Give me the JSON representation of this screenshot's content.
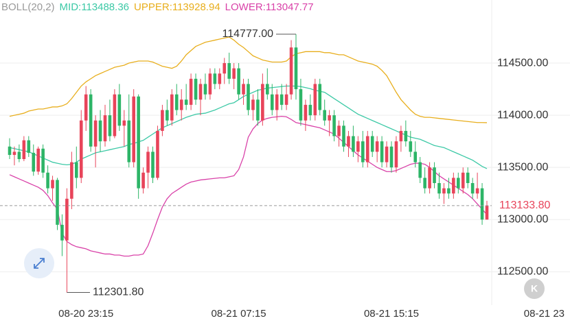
{
  "chart_data": {
    "type": "candlestick",
    "indicator": "BOLL(20,2)",
    "categories": [
      null,
      null,
      null,
      null,
      null,
      null,
      null,
      null,
      null,
      null,
      null,
      null,
      null,
      null,
      null,
      null,
      "08-20 23:15",
      null,
      null,
      null,
      null,
      null,
      null,
      null,
      null,
      null,
      null,
      null,
      null,
      null,
      null,
      null,
      null,
      null,
      null,
      null,
      null,
      null,
      null,
      null,
      null,
      null,
      null,
      null,
      null,
      null,
      null,
      null,
      "08-21 07:15",
      null,
      null,
      null,
      null,
      null,
      null,
      null,
      null,
      null,
      null,
      null,
      null,
      null,
      null,
      null,
      null,
      null,
      null,
      null,
      null,
      null,
      null,
      null,
      null,
      null,
      null,
      null,
      null,
      null,
      null,
      null,
      "08-21 15:15",
      null,
      null,
      null,
      null,
      null,
      null,
      null,
      null,
      null,
      null,
      null,
      null,
      null,
      null,
      null,
      null,
      null,
      null,
      null,
      null,
      null,
      null,
      null,
      null,
      null,
      null,
      null,
      null,
      null,
      null,
      null,
      "08-21 23"
    ],
    "open": [
      113700,
      113620,
      113650,
      113580,
      113760,
      113640,
      113460,
      113680,
      113450,
      113300,
      113380,
      112950,
      112800,
      113200,
      113550,
      113400,
      113950,
      114200,
      113700,
      113950,
      113750,
      114000,
      113800,
      114200,
      113900,
      113950,
      113550,
      114180,
      113300,
      113450,
      113650,
      113400,
      113850,
      114050,
      113950,
      114200,
      114050,
      114150,
      114100,
      114350,
      114150,
      114300,
      114200,
      114400,
      114300,
      114400,
      114500,
      114350,
      114450,
      114200,
      114300,
      114050,
      114150,
      113950,
      114300,
      114200,
      114050,
      114200,
      114100,
      114200,
      114650,
      114250,
      113950,
      114100,
      114000,
      114300,
      114050,
      113950,
      114000,
      113800,
      113900,
      113700,
      113800,
      113650,
      113750,
      113550,
      113800,
      113650,
      113750,
      113550,
      113700,
      113500,
      113750,
      113850,
      113750,
      113650,
      113550,
      113400,
      113300,
      113500,
      113350,
      113250,
      113300,
      113250,
      113400,
      113300,
      113450,
      113350,
      113250,
      113300,
      113000,
      null,
      null,
      null,
      null,
      null,
      null,
      null,
      null,
      null,
      null,
      null,
      null
    ],
    "high": [
      113780,
      113700,
      113720,
      113800,
      113800,
      113720,
      113700,
      113720,
      113520,
      113420,
      113400,
      113050,
      113300,
      113650,
      113700,
      114050,
      114280,
      114250,
      114000,
      114050,
      114100,
      114150,
      114250,
      114300,
      114050,
      114200,
      114250,
      114200,
      113500,
      113700,
      113700,
      113900,
      114100,
      114150,
      114250,
      114300,
      114250,
      114300,
      114400,
      114400,
      114350,
      114400,
      114450,
      114450,
      114450,
      114550,
      114600,
      114500,
      114500,
      114350,
      114350,
      114200,
      114250,
      114400,
      114450,
      114300,
      114250,
      114300,
      114300,
      114720,
      114777,
      114350,
      114150,
      114200,
      114350,
      114350,
      114150,
      114050,
      114050,
      113950,
      113950,
      113850,
      113900,
      113800,
      113850,
      113850,
      113850,
      113800,
      113800,
      113750,
      113750,
      113800,
      113900,
      113950,
      113850,
      113750,
      113600,
      113500,
      113550,
      113550,
      113450,
      113350,
      113400,
      113450,
      113450,
      113500,
      113500,
      113400,
      113450,
      113350,
      113180,
      null,
      null,
      null,
      null,
      null,
      null,
      null,
      null,
      null,
      null,
      null,
      null
    ],
    "low": [
      113580,
      113520,
      113550,
      113560,
      113600,
      113420,
      113430,
      113400,
      113250,
      113180,
      112900,
      112650,
      112301.8,
      113100,
      113300,
      113350,
      113850,
      113650,
      113500,
      113650,
      113700,
      113750,
      113780,
      113850,
      113700,
      113500,
      113500,
      113200,
      113250,
      113300,
      113350,
      113380,
      113800,
      113900,
      113900,
      114000,
      113950,
      114050,
      114050,
      114100,
      114000,
      114150,
      114150,
      114250,
      114250,
      114300,
      114300,
      114250,
      114150,
      114100,
      114000,
      113950,
      113900,
      113900,
      114150,
      114000,
      113950,
      114050,
      114050,
      114150,
      114150,
      113900,
      113850,
      113950,
      113950,
      114000,
      113900,
      113800,
      113750,
      113700,
      113650,
      113600,
      113600,
      113550,
      113500,
      113500,
      113600,
      113550,
      113500,
      113500,
      113450,
      113450,
      113650,
      113700,
      113600,
      113500,
      113350,
      113250,
      113250,
      113300,
      113200,
      113150,
      113200,
      113200,
      113250,
      113250,
      113300,
      113200,
      113200,
      112950,
      113000,
      null,
      null,
      null,
      null,
      null,
      null,
      null,
      null,
      null,
      null,
      null,
      null
    ],
    "close": [
      113620,
      113650,
      113580,
      113760,
      113640,
      113460,
      113680,
      113450,
      113300,
      113380,
      112950,
      112800,
      113200,
      113550,
      113400,
      113950,
      114200,
      113700,
      113950,
      113750,
      114000,
      113800,
      114200,
      113900,
      113950,
      113550,
      114180,
      113300,
      113450,
      113650,
      113400,
      113850,
      114050,
      113950,
      114200,
      114050,
      114150,
      114100,
      114350,
      114150,
      114300,
      114200,
      114400,
      114300,
      114400,
      114500,
      114350,
      114450,
      114200,
      114300,
      114050,
      114150,
      113950,
      114300,
      114200,
      114050,
      114200,
      114100,
      114200,
      114650,
      114250,
      113950,
      114100,
      114000,
      114300,
      114050,
      113950,
      114000,
      113800,
      113900,
      113700,
      113800,
      113650,
      113750,
      113550,
      113800,
      113650,
      113750,
      113550,
      113700,
      113500,
      113750,
      113850,
      113750,
      113650,
      113550,
      113400,
      113300,
      113500,
      113350,
      113250,
      113300,
      113250,
      113400,
      113300,
      113450,
      113350,
      113250,
      113300,
      113000,
      113133.8,
      null,
      null,
      null,
      null,
      null,
      null,
      null,
      null,
      null,
      null,
      null,
      null
    ],
    "up_color": "#e8445a",
    "down_color": "#2db567",
    "series": [
      {
        "name": "MID:113488.36",
        "color": "#3cc9a6",
        "values": [
          113690,
          113680,
          113670,
          113660,
          113650,
          113630,
          113610,
          113590,
          113570,
          113550,
          113540,
          113530,
          113525,
          113530,
          113550,
          113580,
          113600,
          113620,
          113640,
          113650,
          113660,
          113670,
          113680,
          113690,
          113700,
          113720,
          113730,
          113745,
          113760,
          113790,
          113820,
          113850,
          113880,
          113900,
          113920,
          113940,
          113960,
          113980,
          113995,
          114010,
          114015,
          114020,
          114035,
          114050,
          114070,
          114090,
          114110,
          114120,
          114150,
          114180,
          114200,
          114220,
          114240,
          114250,
          114260,
          114265,
          114270,
          114275,
          114280,
          114280,
          114280,
          114275,
          114265,
          114255,
          114240,
          114230,
          114220,
          114190,
          114160,
          114130,
          114100,
          114070,
          114040,
          114010,
          113990,
          113970,
          113950,
          113930,
          113910,
          113890,
          113870,
          113850,
          113830,
          113810,
          113790,
          113780,
          113770,
          113750,
          113730,
          113710,
          113700,
          113690,
          113670,
          113650,
          113630,
          113610,
          113590,
          113570,
          113540,
          113510,
          113488.36,
          null,
          null,
          null,
          null,
          null,
          null,
          null,
          null,
          null,
          null,
          null,
          null
        ]
      },
      {
        "name": "UPPER:113928.94",
        "color": "#e8ae1c",
        "values": [
          113990,
          114000,
          114010,
          114020,
          114040,
          114050,
          114060,
          114060,
          114070,
          114080,
          114080,
          114090,
          114110,
          114160,
          114220,
          114280,
          114320,
          114350,
          114380,
          114400,
          114420,
          114440,
          114460,
          114470,
          114480,
          114500,
          114510,
          114520,
          114520,
          114520,
          114510,
          114490,
          114470,
          114460,
          114450,
          114470,
          114520,
          114580,
          114620,
          114660,
          114680,
          114700,
          114710,
          114720,
          114730,
          114740,
          114750,
          114720,
          114680,
          114650,
          114610,
          114570,
          114550,
          114530,
          114520,
          114510,
          114510,
          114510,
          114520,
          114560,
          114590,
          114600,
          114610,
          114610,
          114610,
          114610,
          114600,
          114600,
          114590,
          114580,
          114580,
          114560,
          114540,
          114520,
          114510,
          114500,
          114490,
          114470,
          114430,
          114380,
          114300,
          114220,
          114150,
          114100,
          114050,
          114010,
          113990,
          113980,
          113980,
          113975,
          113970,
          113965,
          113960,
          113955,
          113950,
          113945,
          113940,
          113935,
          113930,
          113930,
          113928.94,
          null,
          null,
          null,
          null,
          null,
          null,
          null,
          null,
          null,
          null,
          null,
          null
        ]
      },
      {
        "name": "LOWER:113047.77",
        "color": "#d941a8",
        "values": [
          113430,
          113410,
          113390,
          113370,
          113350,
          113330,
          113310,
          113280,
          113230,
          113160,
          113100,
          112870,
          112790,
          112760,
          112740,
          112730,
          112720,
          112700,
          112690,
          112680,
          112670,
          112670,
          112660,
          112660,
          112650,
          112650,
          112660,
          112660,
          112670,
          112750,
          112870,
          113000,
          113120,
          113200,
          113250,
          113280,
          113310,
          113340,
          113360,
          113370,
          113380,
          113385,
          113390,
          113395,
          113400,
          113400,
          113410,
          113420,
          113480,
          113600,
          113790,
          113870,
          113920,
          113955,
          113970,
          113980,
          113985,
          113990,
          113985,
          113960,
          113930,
          113920,
          113910,
          113900,
          113890,
          113880,
          113860,
          113840,
          113820,
          113780,
          113740,
          113700,
          113660,
          113620,
          113590,
          113560,
          113530,
          113500,
          113480,
          113460,
          113460,
          113470,
          113490,
          113510,
          113530,
          113540,
          113540,
          113530,
          113500,
          113460,
          113420,
          113390,
          113360,
          113330,
          113300,
          113270,
          113240,
          113200,
          113150,
          113100,
          113047.77,
          null,
          null,
          null,
          null,
          null,
          null,
          null,
          null,
          null,
          null,
          null,
          null
        ]
      }
    ],
    "ylim": [
      112180,
      115105
    ],
    "yticks": [
      {
        "value": 112500,
        "label": "112500.00"
      },
      {
        "value": 113000,
        "label": "113000.00"
      },
      {
        "value": 113500,
        "label": "113500.00"
      },
      {
        "value": 114000,
        "label": "114000.00"
      },
      {
        "value": 114500,
        "label": "114500.00"
      }
    ],
    "grid": true,
    "last_price": {
      "value": 113133.8,
      "label": "113133.80"
    },
    "max_label": {
      "value": 114777,
      "label": "114777.00"
    },
    "min_label": {
      "value": 112301.8,
      "label": "112301.80"
    }
  },
  "controls": {
    "kline_button": "K"
  }
}
